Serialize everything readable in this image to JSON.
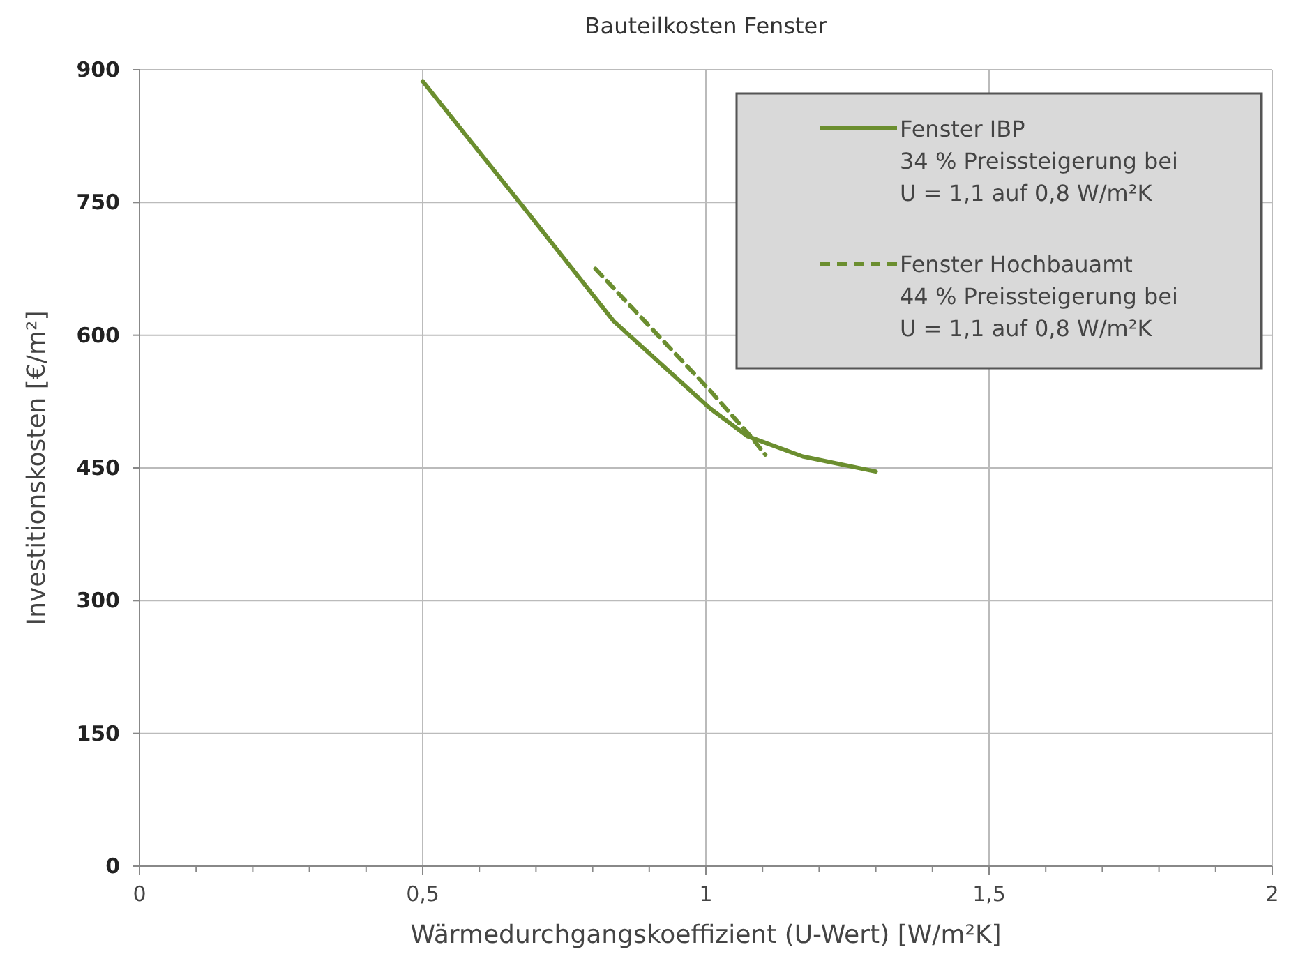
{
  "chart_data": {
    "type": "line",
    "title": "Bauteilkosten Fenster",
    "xlabel": "Wärmedurchgangskoeffizient (U-Wert)   [W/m²K]",
    "ylabel": "Investitionskosten [€/m²]",
    "xlim": [
      0,
      2
    ],
    "xticks": [
      {
        "value": 0,
        "label": "0"
      },
      {
        "value": 0.1,
        "label": null
      },
      {
        "value": 0.2,
        "label": null
      },
      {
        "value": 0.3,
        "label": null
      },
      {
        "value": 0.4,
        "label": null
      },
      {
        "value": 0.5,
        "label": "0,5"
      },
      {
        "value": 0.6,
        "label": null
      },
      {
        "value": 0.7,
        "label": null
      },
      {
        "value": 0.8,
        "label": null
      },
      {
        "value": 0.9,
        "label": null
      },
      {
        "value": 1,
        "label": "1"
      },
      {
        "value": 1.1,
        "label": null
      },
      {
        "value": 1.2,
        "label": null
      },
      {
        "value": 1.3,
        "label": null
      },
      {
        "value": 1.4,
        "label": null
      },
      {
        "value": 1.5,
        "label": "1,5"
      },
      {
        "value": 1.6,
        "label": null
      },
      {
        "value": 1.7,
        "label": null
      },
      {
        "value": 1.8,
        "label": null
      },
      {
        "value": 1.9,
        "label": null
      },
      {
        "value": 2,
        "label": "2"
      }
    ],
    "ylim": [
      0,
      900
    ],
    "yticks": [
      0,
      150,
      300,
      450,
      600,
      750,
      900
    ],
    "grid": true,
    "legend": "top right",
    "series": [
      {
        "name": "Fenster IBP",
        "color": "#6b8e2f",
        "line_style": "solid",
        "x": [
          0.5,
          0.675,
          0.837,
          1.008,
          1.073,
          1.171,
          1.3
        ],
        "values": [
          887,
          747,
          616,
          517,
          486,
          463,
          446
        ]
      },
      {
        "name": "Fenster Hochbauamt",
        "color": "#6b8e2f",
        "line_style": "dashed",
        "x": [
          0.805,
          1.008,
          1.08,
          1.105
        ],
        "values": [
          675,
          537,
          485,
          465
        ]
      }
    ],
    "annotations": [
      "34 % Preissteigerung bei\nU = 1,1 auf 0,8 W/m²K",
      "44 % Preissteigerung bei\nU = 1,1 auf 0,8 W/m²K"
    ]
  }
}
